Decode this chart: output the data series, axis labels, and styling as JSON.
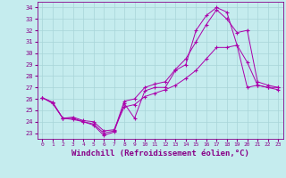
{
  "xlabel": "Windchill (Refroidissement éolien,°C)",
  "background_color": "#c5ecee",
  "grid_color": "#a8d4d8",
  "line_color": "#aa00aa",
  "xlim": [
    -0.5,
    23.5
  ],
  "ylim": [
    22.5,
    34.5
  ],
  "yticks": [
    23,
    24,
    25,
    26,
    27,
    28,
    29,
    30,
    31,
    32,
    33,
    34
  ],
  "xticks": [
    0,
    1,
    2,
    3,
    4,
    5,
    6,
    7,
    8,
    9,
    10,
    11,
    12,
    13,
    14,
    15,
    16,
    17,
    18,
    19,
    20,
    21,
    22,
    23
  ],
  "series": [
    {
      "x": [
        0,
        1,
        2,
        3,
        4,
        5,
        6,
        7,
        8,
        9,
        10,
        11,
        12,
        13,
        14,
        15,
        16,
        17,
        18,
        19,
        20,
        21,
        22,
        23
      ],
      "y": [
        26.1,
        25.6,
        24.3,
        24.2,
        24.0,
        23.7,
        22.8,
        23.1,
        25.6,
        24.3,
        26.7,
        27.0,
        27.0,
        28.5,
        29.0,
        32.0,
        33.3,
        34.0,
        33.6,
        30.7,
        29.2,
        27.2,
        27.0,
        27.0
      ]
    },
    {
      "x": [
        0,
        1,
        2,
        3,
        4,
        5,
        6,
        7,
        8,
        9,
        10,
        11,
        12,
        13,
        14,
        15,
        16,
        17,
        18,
        19,
        20,
        21,
        22,
        23
      ],
      "y": [
        26.1,
        25.7,
        24.3,
        24.3,
        24.0,
        23.8,
        23.0,
        23.2,
        25.8,
        26.0,
        27.0,
        27.3,
        27.5,
        28.6,
        29.5,
        31.0,
        32.5,
        33.8,
        33.0,
        31.8,
        32.0,
        27.5,
        27.2,
        27.0
      ]
    },
    {
      "x": [
        0,
        1,
        2,
        3,
        4,
        5,
        6,
        7,
        8,
        9,
        10,
        11,
        12,
        13,
        14,
        15,
        16,
        17,
        18,
        19,
        20,
        21,
        22,
        23
      ],
      "y": [
        26.1,
        25.7,
        24.3,
        24.4,
        24.1,
        24.0,
        23.2,
        23.3,
        25.3,
        25.5,
        26.2,
        26.5,
        26.8,
        27.2,
        27.8,
        28.5,
        29.5,
        30.5,
        30.5,
        30.7,
        27.0,
        27.2,
        27.0,
        26.8
      ]
    }
  ],
  "tick_color": "#880088",
  "label_fontsize": 6.5,
  "tick_fontsize": 5.5
}
